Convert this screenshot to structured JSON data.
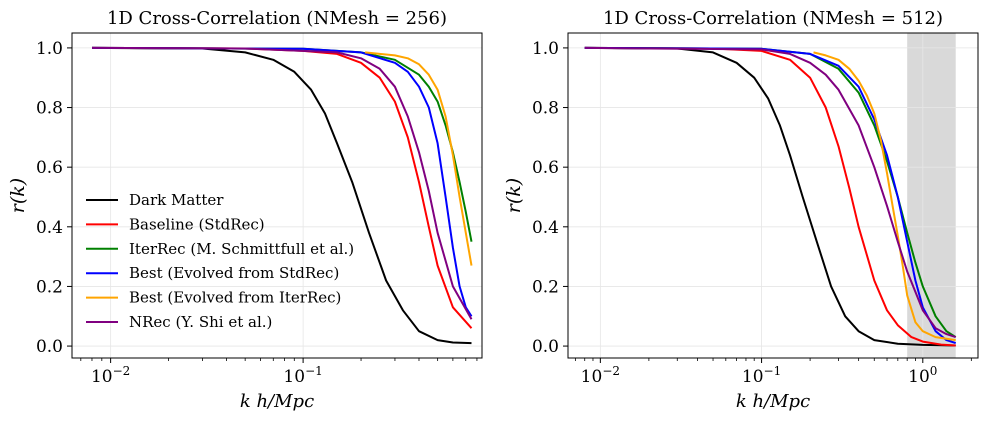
{
  "chart_data": [
    {
      "type": "line",
      "title": "1D Cross-Correlation (NMesh = 256)",
      "xlabel": "k h/Mpc",
      "ylabel": "r(k)",
      "xscale": "log",
      "xlim": [
        0.0063,
        0.85
      ],
      "ylim": [
        -0.04,
        1.05
      ],
      "xticks": [
        {
          "value": 0.01,
          "base": "10",
          "exp": "−2"
        },
        {
          "value": 0.1,
          "base": "10",
          "exp": "−1"
        }
      ],
      "yticks": [
        {
          "value": 0.0,
          "label": "0.0"
        },
        {
          "value": 0.2,
          "label": "0.2"
        },
        {
          "value": 0.4,
          "label": "0.4"
        },
        {
          "value": 0.6,
          "label": "0.6"
        },
        {
          "value": 0.8,
          "label": "0.8"
        },
        {
          "value": 1.0,
          "label": "1.0"
        }
      ],
      "grid": true,
      "legend_position": "lower-left",
      "series": [
        {
          "name": "Dark Matter",
          "color": "#000000",
          "x": [
            0.008,
            0.03,
            0.05,
            0.07,
            0.09,
            0.11,
            0.13,
            0.15,
            0.18,
            0.22,
            0.27,
            0.33,
            0.4,
            0.5,
            0.6,
            0.75
          ],
          "y": [
            1.0,
            0.998,
            0.985,
            0.96,
            0.92,
            0.86,
            0.78,
            0.68,
            0.55,
            0.38,
            0.22,
            0.12,
            0.05,
            0.02,
            0.012,
            0.01
          ]
        },
        {
          "name": "Baseline (StdRec)",
          "color": "#ff0000",
          "x": [
            0.008,
            0.05,
            0.1,
            0.15,
            0.2,
            0.25,
            0.3,
            0.35,
            0.4,
            0.45,
            0.5,
            0.6,
            0.75
          ],
          "y": [
            1.0,
            0.998,
            0.99,
            0.98,
            0.95,
            0.9,
            0.82,
            0.7,
            0.55,
            0.4,
            0.27,
            0.13,
            0.06
          ]
        },
        {
          "name": "IterRec (M. Schmittfull et al.)",
          "color": "#008000",
          "x": [
            0.008,
            0.1,
            0.2,
            0.3,
            0.4,
            0.45,
            0.5,
            0.55,
            0.6,
            0.65,
            0.7,
            0.75
          ],
          "y": [
            1.0,
            0.997,
            0.985,
            0.96,
            0.91,
            0.87,
            0.82,
            0.74,
            0.65,
            0.55,
            0.45,
            0.35
          ]
        },
        {
          "name": "Best (Evolved from StdRec)",
          "color": "#0000ff",
          "x": [
            0.008,
            0.1,
            0.2,
            0.3,
            0.35,
            0.4,
            0.45,
            0.5,
            0.55,
            0.6,
            0.65,
            0.7,
            0.75
          ],
          "y": [
            1.0,
            0.997,
            0.985,
            0.95,
            0.92,
            0.87,
            0.8,
            0.68,
            0.5,
            0.33,
            0.2,
            0.13,
            0.1
          ]
        },
        {
          "name": "Best (Evolved from IterRec)",
          "color": "#ffa500",
          "x": [
            0.21,
            0.25,
            0.3,
            0.35,
            0.4,
            0.45,
            0.5,
            0.55,
            0.6,
            0.65,
            0.7,
            0.75
          ],
          "y": [
            0.985,
            0.98,
            0.975,
            0.965,
            0.945,
            0.91,
            0.86,
            0.77,
            0.64,
            0.5,
            0.38,
            0.27
          ]
        },
        {
          "name": "NRec (Y. Shi et al.)",
          "color": "#800080",
          "x": [
            0.008,
            0.05,
            0.1,
            0.15,
            0.2,
            0.25,
            0.3,
            0.35,
            0.4,
            0.45,
            0.5,
            0.6,
            0.75
          ],
          "y": [
            1.0,
            0.998,
            0.99,
            0.985,
            0.965,
            0.93,
            0.87,
            0.77,
            0.65,
            0.52,
            0.38,
            0.2,
            0.09
          ]
        }
      ]
    },
    {
      "type": "line",
      "title": "1D Cross-Correlation (NMesh = 512)",
      "xlabel": "k h/Mpc",
      "ylabel": "r(k)",
      "xscale": "log",
      "xlim": [
        0.0063,
        2.2
      ],
      "ylim": [
        -0.04,
        1.05
      ],
      "xticks": [
        {
          "value": 0.01,
          "base": "10",
          "exp": "−2"
        },
        {
          "value": 0.1,
          "base": "10",
          "exp": "−1"
        },
        {
          "value": 1.0,
          "base": "10",
          "exp": "0"
        }
      ],
      "yticks": [
        {
          "value": 0.0,
          "label": "0.0"
        },
        {
          "value": 0.2,
          "label": "0.2"
        },
        {
          "value": 0.4,
          "label": "0.4"
        },
        {
          "value": 0.6,
          "label": "0.6"
        },
        {
          "value": 0.8,
          "label": "0.8"
        },
        {
          "value": 1.0,
          "label": "1.0"
        }
      ],
      "grid": true,
      "shaded_region": {
        "x": [
          0.8,
          1.6
        ],
        "color": "#d9d9d9"
      },
      "series": [
        {
          "name": "Dark Matter",
          "color": "#000000",
          "x": [
            0.008,
            0.03,
            0.05,
            0.07,
            0.09,
            0.11,
            0.13,
            0.15,
            0.18,
            0.22,
            0.27,
            0.33,
            0.4,
            0.5,
            0.7,
            1.0,
            1.6
          ],
          "y": [
            1.0,
            0.998,
            0.985,
            0.95,
            0.9,
            0.83,
            0.74,
            0.64,
            0.5,
            0.35,
            0.2,
            0.1,
            0.05,
            0.02,
            0.008,
            0.004,
            0.002
          ]
        },
        {
          "name": "Baseline (StdRec)",
          "color": "#ff0000",
          "x": [
            0.008,
            0.05,
            0.1,
            0.15,
            0.2,
            0.25,
            0.3,
            0.35,
            0.4,
            0.5,
            0.6,
            0.7,
            0.85,
            1.0,
            1.3,
            1.6
          ],
          "y": [
            1.0,
            0.998,
            0.99,
            0.96,
            0.9,
            0.8,
            0.67,
            0.53,
            0.4,
            0.22,
            0.12,
            0.07,
            0.03,
            0.015,
            0.005,
            0.002
          ]
        },
        {
          "name": "IterRec (M. Schmittfull et al.)",
          "color": "#008000",
          "x": [
            0.008,
            0.1,
            0.2,
            0.3,
            0.4,
            0.5,
            0.6,
            0.7,
            0.8,
            0.9,
            1.0,
            1.2,
            1.4,
            1.6
          ],
          "y": [
            1.0,
            0.997,
            0.98,
            0.93,
            0.85,
            0.74,
            0.62,
            0.5,
            0.38,
            0.28,
            0.2,
            0.1,
            0.05,
            0.03
          ]
        },
        {
          "name": "Best (Evolved from StdRec)",
          "color": "#0000ff",
          "x": [
            0.008,
            0.1,
            0.2,
            0.3,
            0.4,
            0.5,
            0.6,
            0.7,
            0.8,
            0.9,
            1.0,
            1.2,
            1.4,
            1.6
          ],
          "y": [
            1.0,
            0.997,
            0.98,
            0.94,
            0.87,
            0.76,
            0.64,
            0.5,
            0.35,
            0.22,
            0.13,
            0.05,
            0.02,
            0.01
          ]
        },
        {
          "name": "Best (Evolved from IterRec)",
          "color": "#ffa500",
          "x": [
            0.21,
            0.25,
            0.3,
            0.35,
            0.4,
            0.45,
            0.5,
            0.55,
            0.6,
            0.65,
            0.7,
            0.75,
            0.8,
            0.9,
            1.0,
            1.2,
            1.6
          ],
          "y": [
            0.985,
            0.975,
            0.96,
            0.93,
            0.89,
            0.84,
            0.78,
            0.69,
            0.58,
            0.47,
            0.37,
            0.27,
            0.17,
            0.08,
            0.05,
            0.03,
            0.02
          ]
        },
        {
          "name": "NRec (Y. Shi et al.)",
          "color": "#800080",
          "x": [
            0.008,
            0.1,
            0.15,
            0.2,
            0.25,
            0.3,
            0.4,
            0.5,
            0.6,
            0.7,
            0.8,
            1.0,
            1.2,
            1.4,
            1.6
          ],
          "y": [
            1.0,
            0.995,
            0.98,
            0.95,
            0.91,
            0.86,
            0.74,
            0.6,
            0.47,
            0.35,
            0.25,
            0.12,
            0.06,
            0.04,
            0.03
          ]
        }
      ]
    }
  ]
}
